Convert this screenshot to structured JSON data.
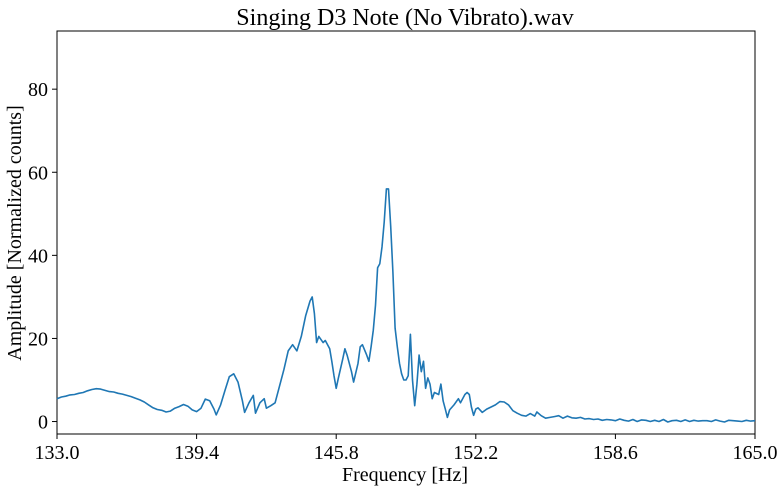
{
  "chart_data": {
    "type": "line",
    "title": "Singing D3 Note (No Vibrato).wav",
    "xlabel": "Frequency [Hz]",
    "ylabel": "Amplitude [Normalized counts]",
    "xlim": [
      133.0,
      165.0
    ],
    "ylim": [
      -3,
      94
    ],
    "x_ticks": [
      "133.0",
      "139.4",
      "145.8",
      "152.2",
      "158.6",
      "165.0"
    ],
    "x_tick_values": [
      133.0,
      139.4,
      145.8,
      152.2,
      158.6,
      165.0
    ],
    "y_ticks": [
      "0",
      "20",
      "40",
      "60",
      "80"
    ],
    "y_tick_values": [
      0,
      20,
      40,
      60,
      80
    ],
    "grid": false,
    "series": [
      {
        "color": "#1f77b4",
        "points": [
          [
            133.0,
            5.5
          ],
          [
            133.2,
            5.9
          ],
          [
            133.4,
            6.1
          ],
          [
            133.6,
            6.4
          ],
          [
            133.8,
            6.5
          ],
          [
            134.0,
            6.8
          ],
          [
            134.2,
            7.0
          ],
          [
            134.4,
            7.4
          ],
          [
            134.6,
            7.7
          ],
          [
            134.8,
            7.9
          ],
          [
            135.0,
            7.8
          ],
          [
            135.2,
            7.5
          ],
          [
            135.4,
            7.2
          ],
          [
            135.6,
            7.1
          ],
          [
            135.8,
            6.8
          ],
          [
            136.0,
            6.6
          ],
          [
            136.2,
            6.3
          ],
          [
            136.4,
            6.0
          ],
          [
            136.6,
            5.6
          ],
          [
            136.8,
            5.2
          ],
          [
            137.0,
            4.7
          ],
          [
            137.2,
            4.0
          ],
          [
            137.4,
            3.3
          ],
          [
            137.6,
            2.9
          ],
          [
            137.8,
            2.7
          ],
          [
            138.0,
            2.3
          ],
          [
            138.2,
            2.5
          ],
          [
            138.4,
            3.2
          ],
          [
            138.6,
            3.6
          ],
          [
            138.8,
            4.1
          ],
          [
            139.0,
            3.7
          ],
          [
            139.2,
            2.8
          ],
          [
            139.4,
            2.4
          ],
          [
            139.6,
            3.2
          ],
          [
            139.8,
            5.4
          ],
          [
            140.0,
            5.0
          ],
          [
            140.2,
            3.0
          ],
          [
            140.3,
            1.6
          ],
          [
            140.5,
            4.0
          ],
          [
            140.7,
            7.5
          ],
          [
            140.9,
            10.8
          ],
          [
            141.1,
            11.5
          ],
          [
            141.3,
            9.5
          ],
          [
            141.5,
            5.0
          ],
          [
            141.6,
            2.2
          ],
          [
            141.8,
            4.5
          ],
          [
            142.0,
            6.3
          ],
          [
            142.1,
            2.0
          ],
          [
            142.3,
            4.5
          ],
          [
            142.5,
            5.5
          ],
          [
            142.6,
            3.2
          ],
          [
            142.8,
            3.8
          ],
          [
            143.0,
            4.5
          ],
          [
            143.2,
            8.5
          ],
          [
            143.4,
            12.5
          ],
          [
            143.6,
            17.0
          ],
          [
            143.8,
            18.5
          ],
          [
            144.0,
            17.0
          ],
          [
            144.2,
            20.5
          ],
          [
            144.4,
            25.5
          ],
          [
            144.6,
            29.0
          ],
          [
            144.7,
            30.0
          ],
          [
            144.8,
            26.0
          ],
          [
            144.9,
            19.0
          ],
          [
            145.0,
            20.5
          ],
          [
            145.2,
            19.0
          ],
          [
            145.3,
            19.5
          ],
          [
            145.5,
            17.5
          ],
          [
            145.6,
            14.5
          ],
          [
            145.7,
            11.0
          ],
          [
            145.8,
            8.0
          ],
          [
            145.9,
            10.5
          ],
          [
            146.1,
            15.0
          ],
          [
            146.2,
            17.5
          ],
          [
            146.3,
            16.0
          ],
          [
            146.5,
            12.0
          ],
          [
            146.6,
            9.5
          ],
          [
            146.8,
            14.0
          ],
          [
            146.9,
            18.0
          ],
          [
            147.0,
            18.5
          ],
          [
            147.2,
            16.0
          ],
          [
            147.3,
            14.5
          ],
          [
            147.4,
            18.0
          ],
          [
            147.5,
            22.0
          ],
          [
            147.6,
            28.0
          ],
          [
            147.7,
            37.0
          ],
          [
            147.8,
            38.0
          ],
          [
            147.9,
            42.0
          ],
          [
            148.0,
            48.0
          ],
          [
            148.1,
            56.0
          ],
          [
            148.2,
            56.0
          ],
          [
            148.3,
            47.0
          ],
          [
            148.4,
            36.0
          ],
          [
            148.5,
            22.5
          ],
          [
            148.6,
            18.0
          ],
          [
            148.7,
            14.0
          ],
          [
            148.8,
            11.5
          ],
          [
            148.9,
            10.0
          ],
          [
            149.0,
            10.0
          ],
          [
            149.1,
            11.0
          ],
          [
            149.2,
            21.0
          ],
          [
            149.3,
            10.0
          ],
          [
            149.4,
            3.8
          ],
          [
            149.5,
            9.0
          ],
          [
            149.6,
            16.0
          ],
          [
            149.7,
            12.0
          ],
          [
            149.8,
            14.5
          ],
          [
            149.9,
            8.0
          ],
          [
            150.0,
            10.5
          ],
          [
            150.1,
            9.0
          ],
          [
            150.2,
            5.5
          ],
          [
            150.3,
            7.0
          ],
          [
            150.5,
            6.5
          ],
          [
            150.6,
            9.0
          ],
          [
            150.7,
            5.0
          ],
          [
            150.8,
            3.0
          ],
          [
            150.9,
            1.0
          ],
          [
            151.0,
            2.8
          ],
          [
            151.2,
            4.0
          ],
          [
            151.4,
            5.5
          ],
          [
            151.5,
            4.5
          ],
          [
            151.7,
            6.5
          ],
          [
            151.8,
            7.0
          ],
          [
            151.9,
            6.5
          ],
          [
            152.0,
            3.5
          ],
          [
            152.1,
            1.5
          ],
          [
            152.2,
            3.0
          ],
          [
            152.3,
            3.3
          ],
          [
            152.5,
            2.2
          ],
          [
            152.7,
            3.0
          ],
          [
            152.9,
            3.5
          ],
          [
            153.1,
            4.0
          ],
          [
            153.3,
            4.8
          ],
          [
            153.5,
            4.7
          ],
          [
            153.7,
            4.0
          ],
          [
            153.9,
            2.6
          ],
          [
            154.1,
            2.0
          ],
          [
            154.3,
            1.5
          ],
          [
            154.5,
            1.3
          ],
          [
            154.7,
            1.9
          ],
          [
            154.9,
            1.3
          ],
          [
            155.0,
            2.3
          ],
          [
            155.2,
            1.4
          ],
          [
            155.4,
            0.8
          ],
          [
            155.6,
            1.0
          ],
          [
            155.8,
            1.2
          ],
          [
            156.0,
            1.4
          ],
          [
            156.2,
            0.8
          ],
          [
            156.4,
            1.3
          ],
          [
            156.6,
            0.9
          ],
          [
            156.8,
            0.8
          ],
          [
            157.0,
            1.0
          ],
          [
            157.2,
            0.6
          ],
          [
            157.4,
            0.7
          ],
          [
            157.6,
            0.5
          ],
          [
            157.8,
            0.6
          ],
          [
            158.0,
            0.3
          ],
          [
            158.2,
            0.5
          ],
          [
            158.4,
            0.4
          ],
          [
            158.6,
            0.2
          ],
          [
            158.8,
            0.6
          ],
          [
            159.0,
            0.3
          ],
          [
            159.2,
            0.1
          ],
          [
            159.4,
            0.5
          ],
          [
            159.6,
            0.0
          ],
          [
            159.8,
            0.4
          ],
          [
            160.0,
            0.3
          ],
          [
            160.2,
            0.0
          ],
          [
            160.4,
            0.3
          ],
          [
            160.6,
            0.0
          ],
          [
            160.8,
            0.5
          ],
          [
            161.0,
            -0.1
          ],
          [
            161.2,
            0.2
          ],
          [
            161.4,
            0.3
          ],
          [
            161.6,
            0.0
          ],
          [
            161.8,
            0.4
          ],
          [
            162.0,
            0.0
          ],
          [
            162.2,
            0.3
          ],
          [
            162.4,
            0.1
          ],
          [
            162.6,
            0.2
          ],
          [
            162.8,
            0.2
          ],
          [
            163.0,
            0.0
          ],
          [
            163.2,
            0.4
          ],
          [
            163.4,
            0.1
          ],
          [
            163.6,
            -0.1
          ],
          [
            163.8,
            0.3
          ],
          [
            164.0,
            0.2
          ],
          [
            164.2,
            0.1
          ],
          [
            164.4,
            0.0
          ],
          [
            164.6,
            0.3
          ],
          [
            164.8,
            0.1
          ],
          [
            165.0,
            0.2
          ]
        ]
      }
    ]
  }
}
